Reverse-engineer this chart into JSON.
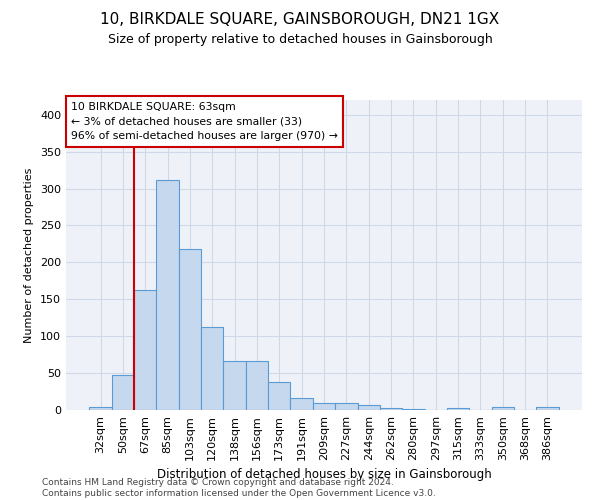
{
  "title": "10, BIRKDALE SQUARE, GAINSBOROUGH, DN21 1GX",
  "subtitle": "Size of property relative to detached houses in Gainsborough",
  "xlabel": "Distribution of detached houses by size in Gainsborough",
  "ylabel": "Number of detached properties",
  "categories": [
    "32sqm",
    "50sqm",
    "67sqm",
    "85sqm",
    "103sqm",
    "120sqm",
    "138sqm",
    "156sqm",
    "173sqm",
    "191sqm",
    "209sqm",
    "227sqm",
    "244sqm",
    "262sqm",
    "280sqm",
    "297sqm",
    "315sqm",
    "333sqm",
    "350sqm",
    "368sqm",
    "386sqm"
  ],
  "values": [
    4,
    47,
    163,
    312,
    218,
    113,
    67,
    67,
    38,
    16,
    10,
    10,
    7,
    3,
    1,
    0,
    3,
    0,
    4,
    0,
    4
  ],
  "bar_color": "#c5d8ed",
  "bar_edge_color": "#5b9bd5",
  "grid_color": "#d0d8e8",
  "bg_color": "#eef2f8",
  "vline_color": "#cc0000",
  "vline_pos": 1.5,
  "annotation_text": "10 BIRKDALE SQUARE: 63sqm\n← 3% of detached houses are smaller (33)\n96% of semi-detached houses are larger (970) →",
  "annotation_box_color": "#ffffff",
  "annotation_box_edge": "#cc0000",
  "footer": "Contains HM Land Registry data © Crown copyright and database right 2024.\nContains public sector information licensed under the Open Government Licence v3.0.",
  "ylim": [
    0,
    420
  ],
  "yticks": [
    0,
    50,
    100,
    150,
    200,
    250,
    300,
    350,
    400
  ],
  "figsize": [
    6.0,
    5.0
  ],
  "dpi": 100
}
